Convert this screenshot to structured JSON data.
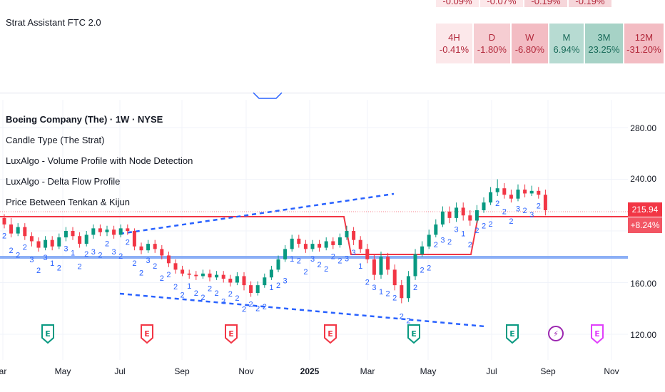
{
  "indicator_title": "Strat Assistant FTC 2.0",
  "timeframe_table": {
    "partial_row": [
      "-0.09%",
      "-0.07%",
      "-0.19%",
      "-0.19%"
    ],
    "cells": [
      {
        "tf": "4H",
        "pct": "-0.41%",
        "bg": "#fce8ea",
        "fg": "#b2283b"
      },
      {
        "tf": "D",
        "pct": "-1.80%",
        "bg": "#f6cdd2",
        "fg": "#b2283b"
      },
      {
        "tf": "W",
        "pct": "-6.80%",
        "bg": "#f3bcc3",
        "fg": "#b2283b"
      },
      {
        "tf": "M",
        "pct": "6.94%",
        "bg": "#b7dbd2",
        "fg": "#1a6b5a"
      },
      {
        "tf": "3M",
        "pct": "23.25%",
        "bg": "#a6d2c6",
        "fg": "#1a6b5a"
      },
      {
        "tf": "12M",
        "pct": "-31.20%",
        "bg": "#f3bcc3",
        "fg": "#b2283b"
      }
    ]
  },
  "legend": {
    "symbol_line": "Boeing Company (The) · 1W · NYSE",
    "items": [
      "Candle Type (The Strat)",
      "LuxAlgo - Volume Profile with Node Detection",
      "LuxAlgo - Delta Flow Profile",
      "Price Between Tenkan & Kijun"
    ]
  },
  "price_axis": {
    "ticks": [
      "280.00",
      "240.00",
      "160.00",
      "120.00"
    ],
    "last_price": "215.94",
    "change_pct": "+8.24%"
  },
  "time_axis": {
    "labels": [
      "ar",
      "May",
      "Jul",
      "Sep",
      "Nov",
      "2025",
      "Mar",
      "May",
      "Jul",
      "Sep",
      "Nov"
    ]
  },
  "events": [
    "E",
    "E",
    "E",
    "E",
    "E",
    "E",
    "⚡",
    "E"
  ],
  "colors": {
    "up": "#089981",
    "down": "#f23645",
    "strat_label": "#2962ff",
    "kijun_line": "#f23645",
    "value_line": "#6f9cf5",
    "channel": "#2962ff",
    "earnings_green": "#089981",
    "earnings_red": "#f23645",
    "dividend": "#9c27b0",
    "split": "#e040fb"
  },
  "strat_numbers": "2 2 2 2 3 2 3 1 2 3 1 2 2 3 2 2 3 2 2 2 2 3 2 2 2 2 2 1 2 2 2 2 3 2 2 2 2 2 2 1 2 3 1 2 2 3 2 2 2 2 3 3 1 2 3 1 2 2 2 2 2 2 2 2 3 2 3 1 2 2 2 2 2 2 2 3 2 3 2"
}
